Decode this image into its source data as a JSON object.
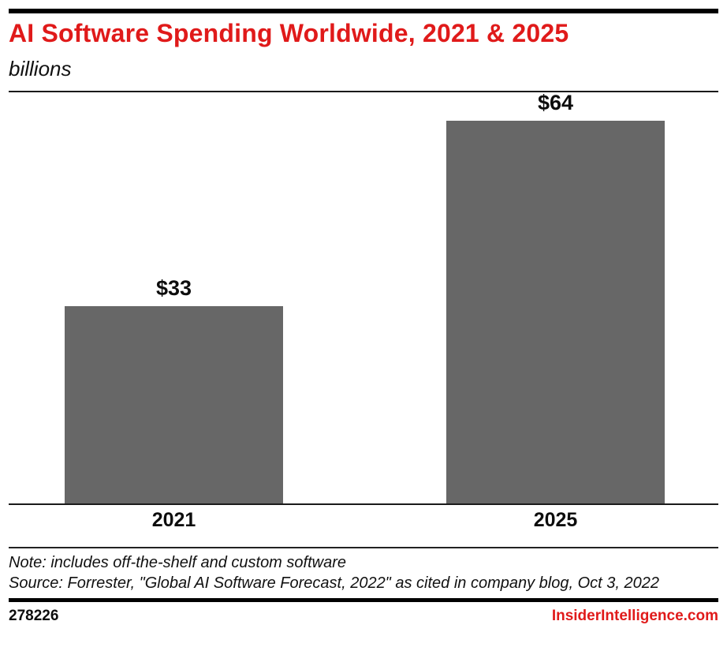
{
  "header": {
    "title": "AI Software Spending Worldwide, 2021 & 2025",
    "subtitle": "billions"
  },
  "chart_data": {
    "type": "bar",
    "title": "AI Software Spending Worldwide, 2021 & 2025",
    "subtitle": "billions",
    "categories": [
      "2021",
      "2025"
    ],
    "values": [
      33,
      64
    ],
    "value_labels": [
      "$33",
      "$64"
    ],
    "xlabel": "",
    "ylabel": "billions",
    "ylim": [
      0,
      69
    ],
    "grid": false,
    "legend": false,
    "bar_color": "#676767"
  },
  "notes": {
    "note": "Note: includes off-the-shelf and custom software",
    "source": "Source: Forrester, \"Global AI Software Forecast, 2022\" as cited in company blog, Oct 3, 2022"
  },
  "footer": {
    "chart_id": "278226",
    "site": "InsiderIntelligence.com"
  },
  "colors": {
    "accent_red": "#e01a1a",
    "bar_gray": "#676767",
    "text_black": "#0d0d0d",
    "rule_black": "#000000"
  }
}
